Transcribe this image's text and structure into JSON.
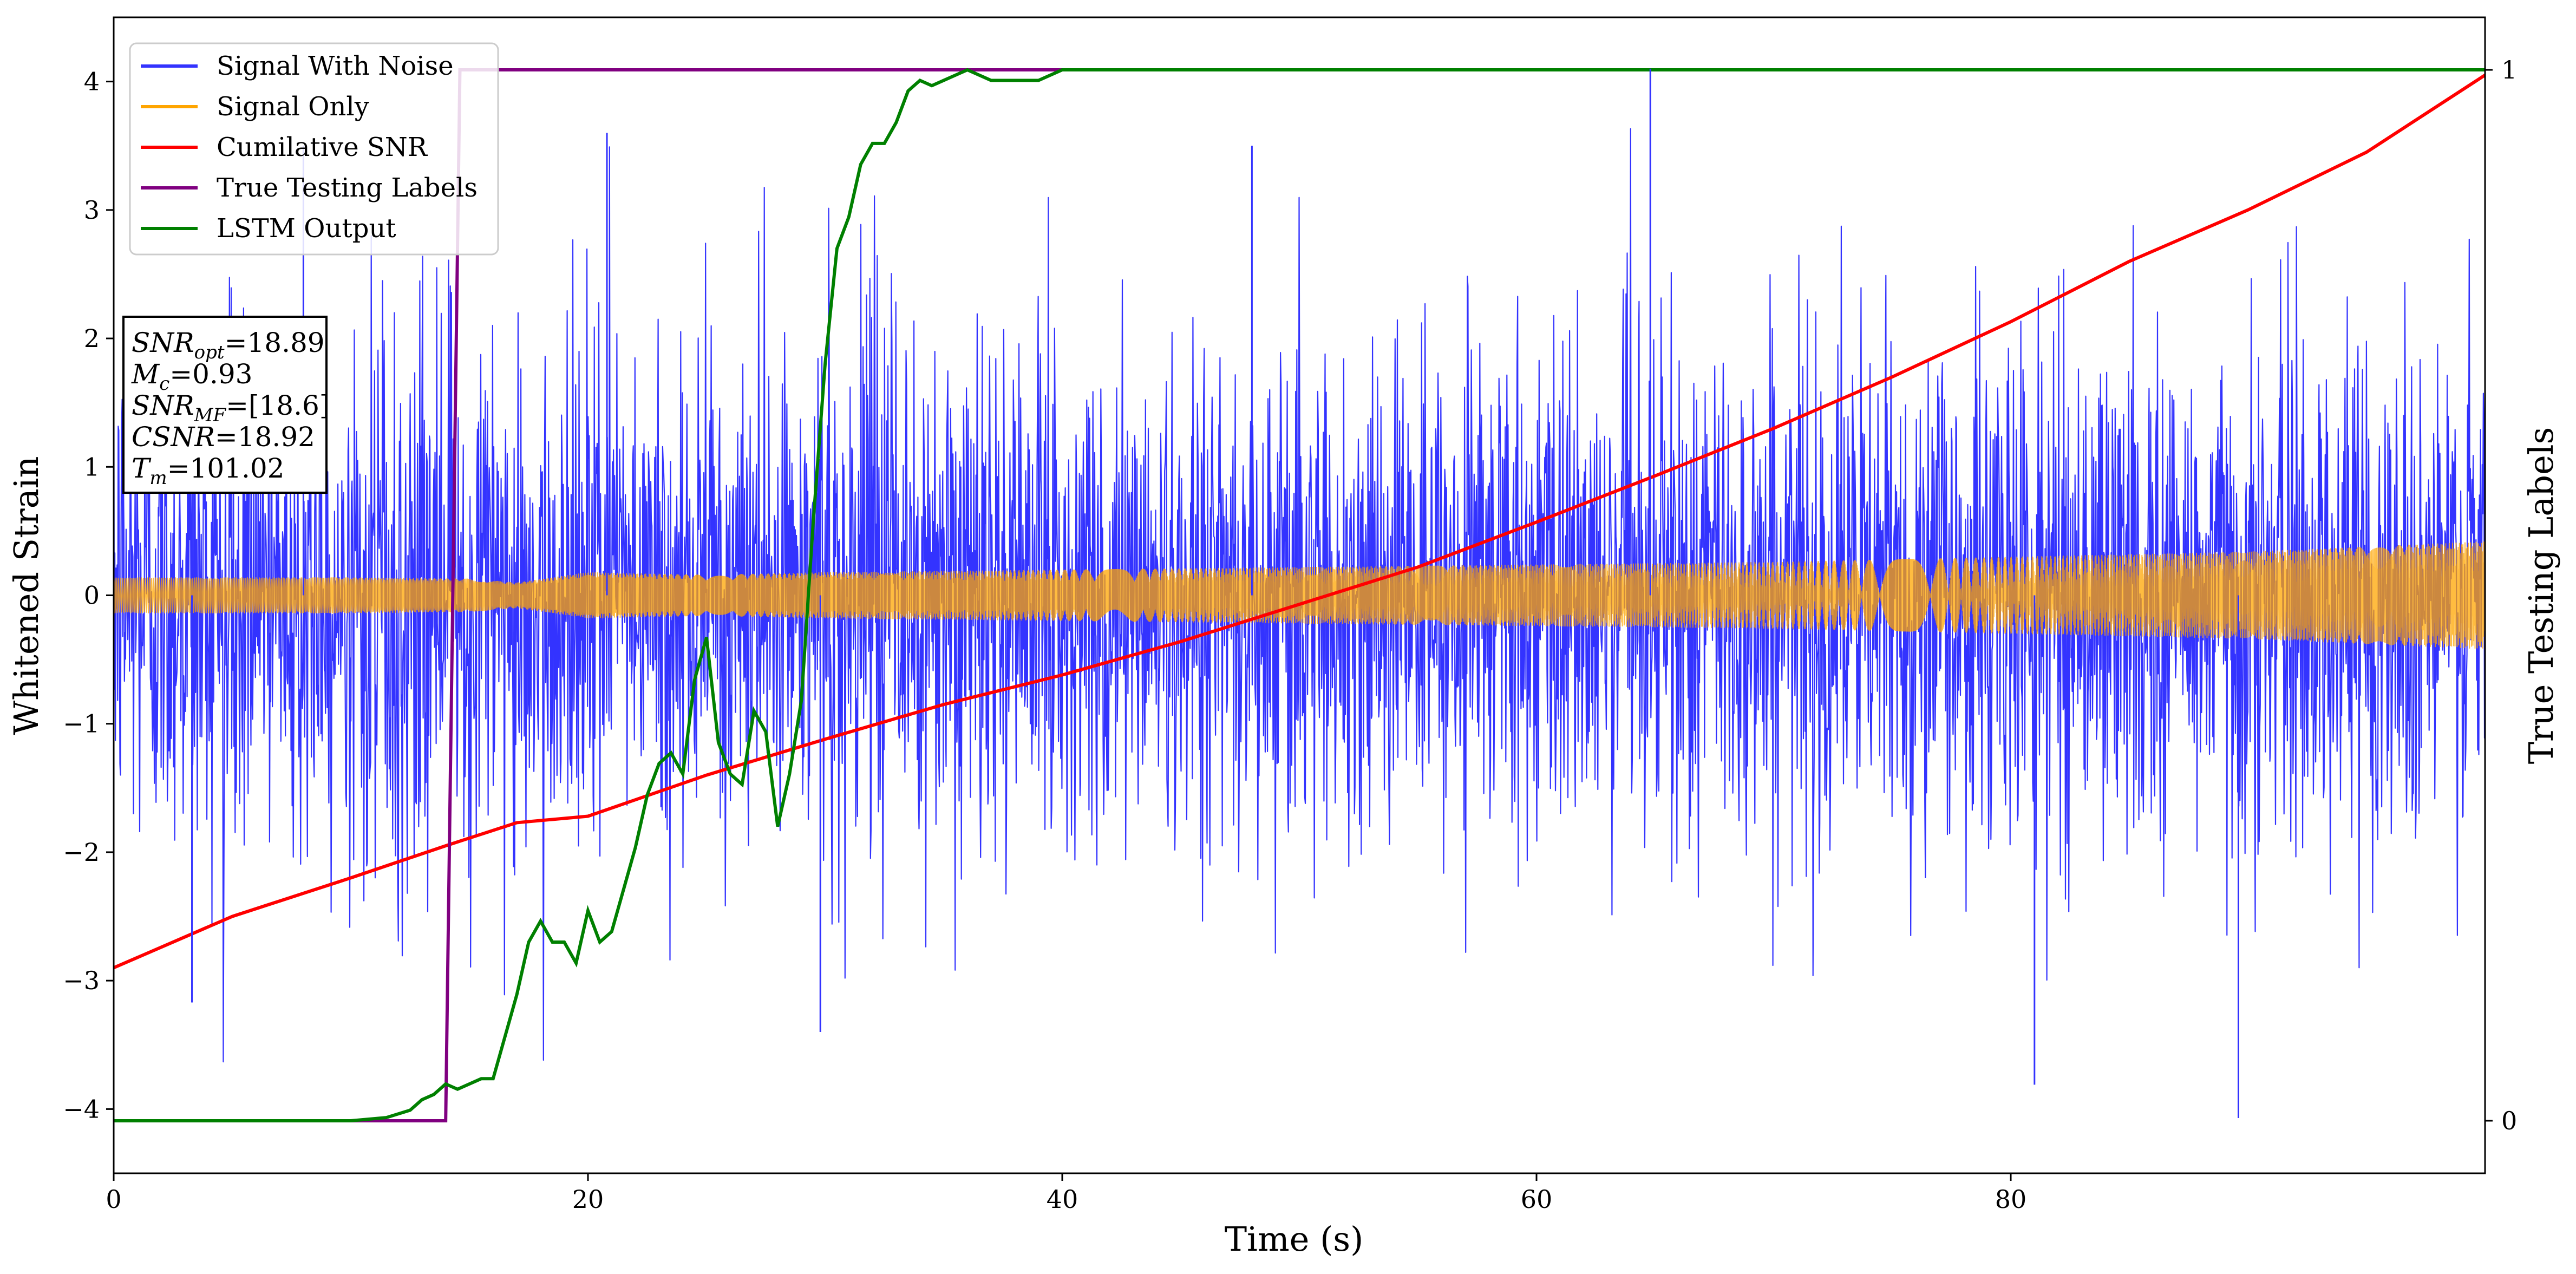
{
  "chart_data": {
    "type": "line",
    "title": "",
    "xlabel": "Time (s)",
    "ylabel": "Whitened Strain",
    "ylabel_right": "True Testing Labels",
    "xlim": [
      0,
      100
    ],
    "ylim": [
      -4.5,
      4.5
    ],
    "ylim_right": [
      -0.05,
      1.05
    ],
    "x_ticks": [
      0,
      20,
      40,
      60,
      80
    ],
    "x_tick_labels": [
      "0",
      "20",
      "40",
      "60",
      "80"
    ],
    "y_ticks": [
      -4,
      -3,
      -2,
      -1,
      0,
      1,
      2,
      3,
      4
    ],
    "y_tick_labels": [
      "−4",
      "−3",
      "−2",
      "−1",
      "0",
      "1",
      "2",
      "3",
      "4"
    ],
    "y_right_ticks": [
      0,
      1
    ],
    "y_right_tick_labels": [
      "0",
      "1"
    ],
    "grid": false,
    "legend_position": "upper-left",
    "legend": [
      "Signal With Noise",
      "Signal Only",
      "Cumilative SNR",
      "True Testing Labels",
      "LSTM Output"
    ],
    "colors": {
      "signal_with_noise": "#3333ff",
      "signal_only": "#ffa500",
      "cumulative_snr": "#ff0000",
      "true_labels": "#800080",
      "lstm": "#008000"
    },
    "annotation": {
      "snr_opt": "=18.89",
      "mc": "=0.93",
      "snr_mf": "=[18.6]",
      "csnr": "=18.92",
      "tm": "=101.02"
    },
    "series": [
      {
        "name": "Signal With Noise",
        "axis": "left",
        "description_values": {
          "std": 1.0,
          "notable_peaks": [
            [
              64.8,
              4.1
            ],
            [
              8.0,
              3.5
            ],
            [
              20.8,
              3.6
            ],
            [
              48.0,
              3.5
            ],
            [
              89.6,
              -4.07
            ],
            [
              81.0,
              -3.81
            ],
            [
              29.8,
              -3.4
            ],
            [
              3.3,
              -3.17
            ]
          ]
        }
      },
      {
        "name": "Signal Only",
        "axis": "left",
        "envelope": {
          "x": [
            0,
            10,
            15,
            17,
            20,
            25,
            30,
            40,
            50,
            60,
            70,
            80,
            90,
            95,
            100
          ],
          "amplitude": [
            0.14,
            0.14,
            0.13,
            0.1,
            0.18,
            0.16,
            0.18,
            0.2,
            0.22,
            0.24,
            0.26,
            0.3,
            0.34,
            0.38,
            0.42
          ]
        }
      },
      {
        "name": "Cumilative SNR",
        "axis": "left",
        "x": [
          0,
          5,
          10,
          14,
          17,
          20,
          25,
          30,
          35,
          40,
          45,
          50,
          55,
          60,
          65,
          70,
          75,
          80,
          85,
          90,
          95,
          100
        ],
        "y": [
          -2.9,
          -2.5,
          -2.2,
          -1.95,
          -1.77,
          -1.72,
          -1.4,
          -1.12,
          -0.85,
          -0.62,
          -0.36,
          -0.07,
          0.22,
          0.57,
          0.93,
          1.3,
          1.7,
          2.13,
          2.6,
          3.0,
          3.45,
          4.05
        ]
      },
      {
        "name": "True Testing Labels",
        "axis": "right",
        "x": [
          0,
          14.0,
          14.6,
          100
        ],
        "y": [
          0,
          0,
          1,
          1
        ]
      },
      {
        "name": "LSTM Output",
        "axis": "right",
        "x": [
          0,
          10,
          11.5,
          12.5,
          13,
          13.5,
          14,
          14.5,
          15,
          15.5,
          16,
          16.5,
          17,
          17.5,
          18,
          18.5,
          19,
          19.5,
          20,
          20.5,
          21,
          21.5,
          22,
          22.5,
          23,
          23.5,
          24,
          24.5,
          25,
          25.5,
          26,
          26.5,
          27,
          27.5,
          28,
          28.5,
          29,
          29.5,
          30,
          30.5,
          31,
          31.5,
          32,
          32.5,
          33,
          33.5,
          34,
          34.5,
          35,
          36,
          37,
          38,
          39,
          40,
          42,
          44,
          46,
          48,
          50,
          60,
          100
        ],
        "y": [
          0,
          0,
          0.003,
          0.01,
          0.02,
          0.025,
          0.035,
          0.03,
          0.035,
          0.04,
          0.04,
          0.08,
          0.12,
          0.17,
          0.19,
          0.17,
          0.17,
          0.15,
          0.2,
          0.17,
          0.18,
          0.22,
          0.26,
          0.31,
          0.34,
          0.35,
          0.33,
          0.42,
          0.46,
          0.36,
          0.33,
          0.32,
          0.39,
          0.37,
          0.28,
          0.33,
          0.4,
          0.57,
          0.72,
          0.83,
          0.86,
          0.91,
          0.93,
          0.93,
          0.95,
          0.98,
          0.99,
          0.985,
          0.99,
          1.0,
          0.99,
          0.99,
          0.99,
          1.0,
          1.0,
          1.0,
          1.0,
          1.0,
          1.0,
          1.0,
          1.0
        ]
      }
    ]
  }
}
